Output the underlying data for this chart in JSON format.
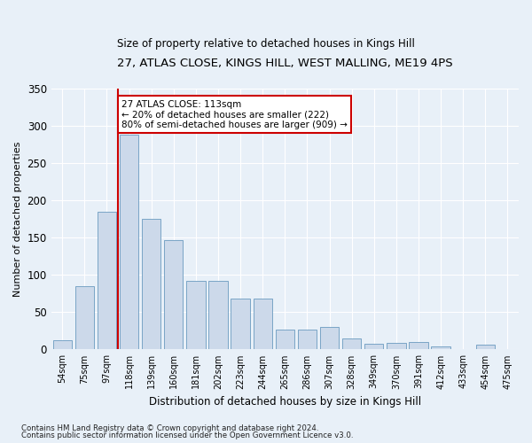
{
  "title": "27, ATLAS CLOSE, KINGS HILL, WEST MALLING, ME19 4PS",
  "subtitle": "Size of property relative to detached houses in Kings Hill",
  "xlabel": "Distribution of detached houses by size in Kings Hill",
  "ylabel": "Number of detached properties",
  "bin_labels": [
    "54sqm",
    "75sqm",
    "97sqm",
    "118sqm",
    "139sqm",
    "160sqm",
    "181sqm",
    "202sqm",
    "223sqm",
    "244sqm",
    "265sqm",
    "286sqm",
    "307sqm",
    "328sqm",
    "349sqm",
    "370sqm",
    "391sqm",
    "412sqm",
    "433sqm",
    "454sqm",
    "475sqm"
  ],
  "bar_heights": [
    12,
    85,
    185,
    288,
    175,
    147,
    92,
    92,
    68,
    68,
    27,
    27,
    30,
    15,
    8,
    9,
    10,
    4,
    0,
    6,
    0
  ],
  "bar_color": "#ccd9ea",
  "bar_edge_color": "#6a9abf",
  "vline_color": "#cc0000",
  "annotation_text": "27 ATLAS CLOSE: 113sqm\n← 20% of detached houses are smaller (222)\n80% of semi-detached houses are larger (909) →",
  "annotation_box_color": "#cc0000",
  "background_color": "#e8f0f8",
  "plot_bg_color": "#e8f0f8",
  "footer1": "Contains HM Land Registry data © Crown copyright and database right 2024.",
  "footer2": "Contains public sector information licensed under the Open Government Licence v3.0.",
  "ylim": [
    0,
    350
  ],
  "yticks": [
    0,
    50,
    100,
    150,
    200,
    250,
    300,
    350
  ]
}
